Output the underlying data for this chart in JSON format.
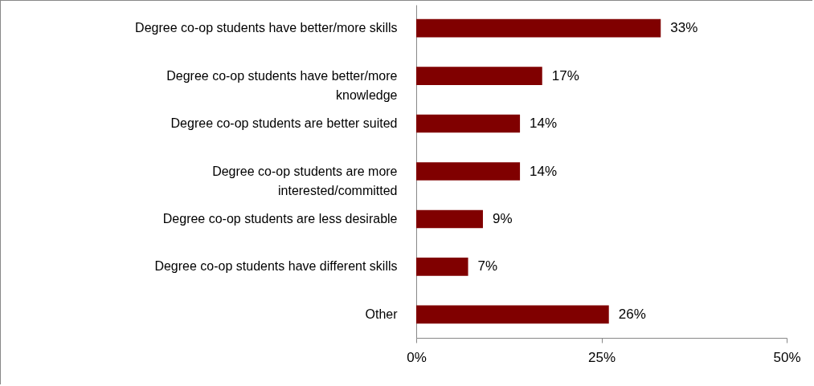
{
  "chart_data": {
    "type": "bar",
    "orientation": "horizontal",
    "categories": [
      "Degree co-op students have better/more skills",
      "Degree co-op students have better/more knowledge",
      "Degree co-op students are better suited",
      "Degree co-op students are more interested/committed",
      "Degree co-op students are less desirable",
      "Degree co-op students have different skills",
      "Other"
    ],
    "values": [
      33,
      17,
      14,
      14,
      9,
      7,
      26
    ],
    "value_labels": [
      "33%",
      "17%",
      "14%",
      "14%",
      "9%",
      "7%",
      "26%"
    ],
    "color": "#800000",
    "xlim": [
      0,
      50
    ],
    "xticks": [
      {
        "value": 0,
        "label": "0%"
      },
      {
        "value": 25,
        "label": "25%"
      },
      {
        "value": 50,
        "label": "50%"
      }
    ],
    "grid": false
  }
}
